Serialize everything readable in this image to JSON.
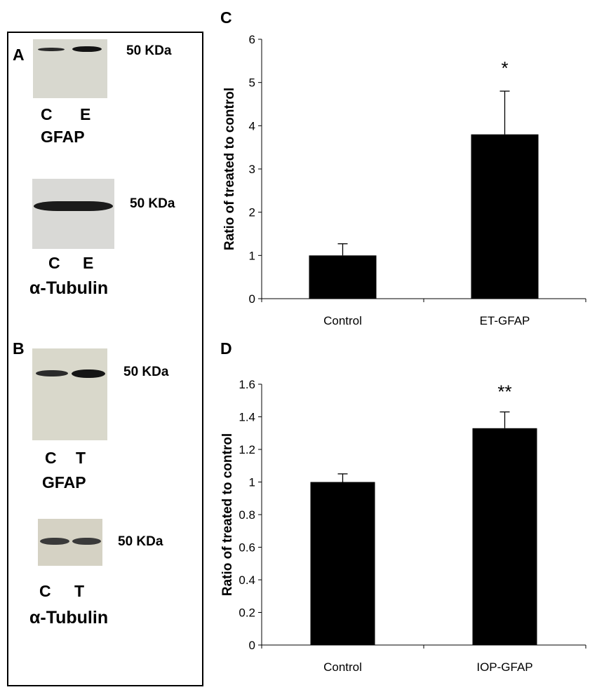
{
  "panel_labels": {
    "a": "A",
    "b": "B",
    "c": "C",
    "d": "D"
  },
  "blots": {
    "a_gfap": {
      "marker": "50 KDa",
      "lanes": [
        "C",
        "E"
      ],
      "protein": "GFAP"
    },
    "a_tubulin": {
      "marker": "50 KDa",
      "lanes": [
        "C",
        "E"
      ],
      "protein": "α-Tubulin"
    },
    "b_gfap": {
      "marker": "50 KDa",
      "lanes": [
        "C",
        "T"
      ],
      "protein": "GFAP"
    },
    "b_tubulin": {
      "marker": "50 KDa",
      "lanes": [
        "C",
        "T"
      ],
      "protein": "α-Tubulin"
    }
  },
  "chart_data": [
    {
      "id": "C",
      "type": "bar",
      "categories": [
        "Control",
        "ET-GFAP"
      ],
      "values": [
        1.0,
        3.8
      ],
      "errors": [
        0.27,
        1.0
      ],
      "annotations": [
        "",
        "*"
      ],
      "ylabel": "Ratio of treated to control",
      "xlabel": "",
      "ylim": [
        0,
        6
      ],
      "yticks": [
        0,
        1,
        2,
        3,
        4,
        5,
        6
      ],
      "ytick_labels": [
        "0",
        "1",
        "2",
        "3",
        "4",
        "5",
        "6"
      ],
      "bar_color": "#000000"
    },
    {
      "id": "D",
      "type": "bar",
      "categories": [
        "Control",
        "IOP-GFAP"
      ],
      "values": [
        1.0,
        1.33
      ],
      "errors": [
        0.05,
        0.1
      ],
      "annotations": [
        "",
        "**"
      ],
      "ylabel": "Ratio of treated to control",
      "xlabel": "",
      "ylim": [
        0,
        1.6
      ],
      "yticks": [
        0,
        0.2,
        0.4,
        0.6,
        0.8,
        1.0,
        1.2,
        1.4,
        1.6
      ],
      "ytick_labels": [
        "0",
        "0.2",
        "0.4",
        "0.6",
        "0.8",
        "1",
        "1.2",
        "1.4",
        "1.6"
      ],
      "bar_color": "#000000"
    }
  ]
}
